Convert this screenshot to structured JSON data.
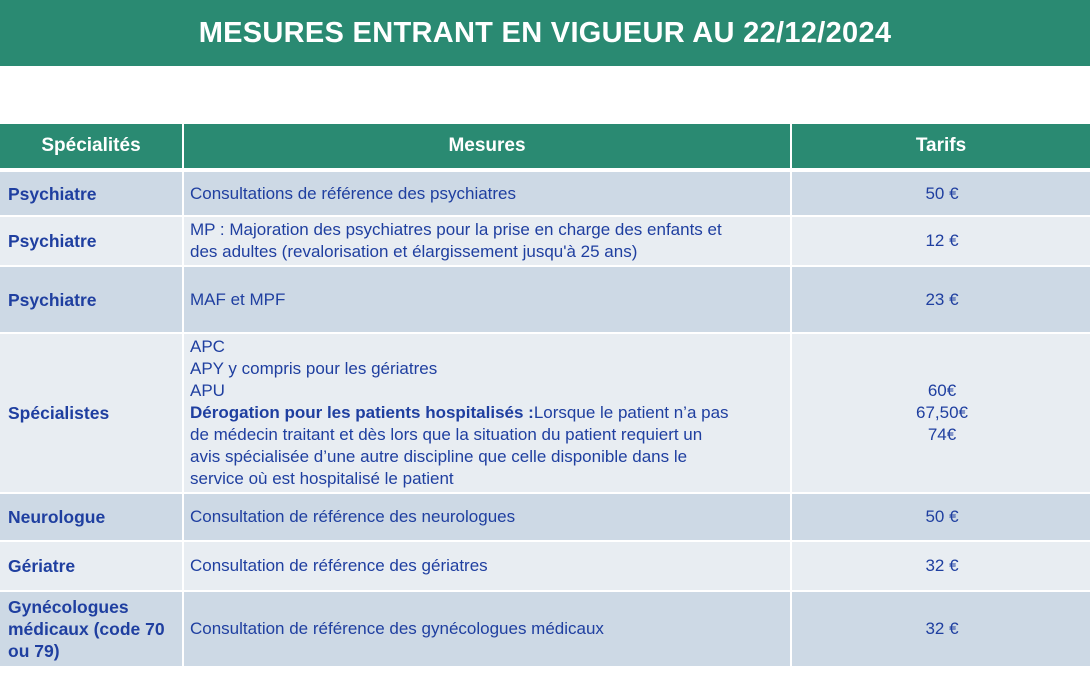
{
  "title": "MESURES ENTRANT EN VIGUEUR AU 22/12/2024",
  "colors": {
    "header": "#2a8a72",
    "text": "#1f3fa0",
    "row_dark": "#cdd9e5",
    "row_light": "#e8edf2"
  },
  "columns": {
    "specialty": "Spécialités",
    "measures": "Mesures",
    "tariffs": "Tarifs"
  },
  "rows": [
    {
      "specialty": "Psychiatre",
      "measure": "Consultations de référence des psychiatres",
      "tariff": "50 €"
    },
    {
      "specialty": "Psychiatre",
      "measure_lines": [
        "MP : Majoration des psychiatres pour la prise en charge des enfants et",
        "des adultes (revalorisation et élargissement jusqu'à 25 ans)"
      ],
      "tariff": "12 €"
    },
    {
      "specialty": "Psychiatre",
      "measure": "MAF et MPF",
      "tariff": "23 €"
    },
    {
      "specialty": "Spécialistes",
      "measure_lines": [
        "APC",
        "APY y compris pour les gériatres",
        "APU"
      ],
      "derogation_label": "Dérogation pour les patients hospitalisés :",
      "derogation_lines": [
        "Lorsque le patient n’a pas",
        "de médecin traitant et dès lors que la situation du patient requiert un",
        "avis spécialisée d’une autre discipline que celle disponible dans le",
        "service où est hospitalisé le patient"
      ],
      "tariffs": [
        "60€",
        "67,50€",
        "74€"
      ]
    },
    {
      "specialty": "Neurologue",
      "measure": "Consultation de référence des  neurologues",
      "tariff": "50 €"
    },
    {
      "specialty": "Gériatre",
      "measure": "Consultation de référence des gériatres",
      "tariff": "32 €"
    },
    {
      "specialty_lines": [
        "Gynécologues",
        "médicaux (code 70",
        "ou 79)"
      ],
      "measure": "Consultation de référence des gynécologues médicaux",
      "tariff": "32 €"
    }
  ]
}
